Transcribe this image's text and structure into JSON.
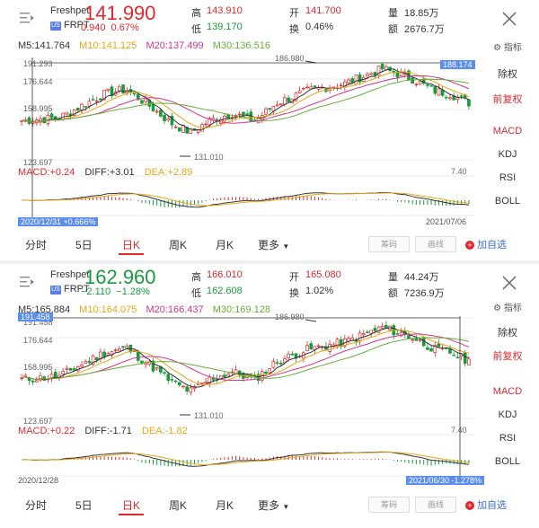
{
  "panels": [
    {
      "name": "Freshpet",
      "exchange": "US",
      "ticker": "FRPT",
      "price": "141.990",
      "change": "0.940",
      "change_pct": "0.67%",
      "high_label": "高",
      "high": "143.910",
      "low_label": "低",
      "low": "139.170",
      "open_label": "开",
      "open": "141.700",
      "turnover_label": "换",
      "turnover": "0.46%",
      "volume_label": "量",
      "volume": "18.85万",
      "amount_label": "额",
      "amount": "2676.7万",
      "ma": {
        "m5": "M5:141.764",
        "m10": "M10:141.125",
        "m20": "M20:137.499",
        "m30": "M30:136.516"
      },
      "indicator_label": "指标",
      "axis": {
        "y1": "191.293",
        "y2": "176.644",
        "y3": "158.995",
        "y4": "123.697",
        "crosshair_price": "188.174"
      },
      "annot": {
        "high": "186.980",
        "low": "131.010"
      },
      "right_menu": [
        "除权",
        "前复权",
        "MACD",
        "KDJ",
        "RSI",
        "BOLL"
      ],
      "macd": {
        "macd": "MACD:+0.24",
        "diff": "DIFF:+3.01",
        "dea": "DEA:+2.89",
        "scale": "7.40"
      },
      "date_left": "2020/12/31 +0.666%",
      "date_right": "2021/07/06",
      "tabs": [
        "分时",
        "5日",
        "日K",
        "周K",
        "月K",
        "更多"
      ],
      "btn_chip": "筹码",
      "btn_draw": "画线",
      "add_fav": "加自选"
    },
    {
      "name": "Freshpet",
      "exchange": "US",
      "ticker": "FRPT",
      "price": "162.960",
      "change": "−2.110",
      "change_pct": "−1.28%",
      "high_label": "高",
      "high": "166.010",
      "low_label": "低",
      "low": "162.608",
      "open_label": "开",
      "open": "165.080",
      "turnover_label": "换",
      "turnover": "1.02%",
      "volume_label": "量",
      "volume": "44.24万",
      "amount_label": "额",
      "amount": "7236.9万",
      "ma": {
        "m5": "M5:165.884",
        "m10": "M10:164.075",
        "m20": "M20:166.437",
        "m30": "M30:169.128"
      },
      "indicator_label": "指标",
      "axis": {
        "y1": "191.458",
        "y2": "176.644",
        "y3": "158.995",
        "y4": "123.697",
        "crosshair_price": "191.458"
      },
      "annot": {
        "high": "186.980",
        "low": "131.010"
      },
      "right_menu": [
        "除权",
        "前复权",
        "MACD",
        "KDJ",
        "RSI",
        "BOLL"
      ],
      "macd": {
        "macd": "MACD:+0.22",
        "diff": "DIFF:-1.71",
        "dea": "DEA:-1.82",
        "scale": "7.40"
      },
      "date_left": "2020/12/28",
      "date_right": "2021/06/30 -1.278%",
      "tabs": [
        "分时",
        "5日",
        "日K",
        "周K",
        "月K",
        "更多"
      ],
      "btn_chip": "筹码",
      "btn_draw": "画线",
      "add_fav": "加自选"
    }
  ],
  "colors": {
    "up": "#e0282d",
    "down": "#1a9a3c",
    "ma5": "#333333",
    "ma10": "#e6a817",
    "ma20": "#d0368a",
    "ma30": "#68ae3c",
    "accent": "#3d6dd8"
  },
  "icons": {
    "menu": "list-menu-icon",
    "close": "close-icon",
    "indicator": "indicator-gear-icon",
    "add": "add-circle-icon"
  }
}
